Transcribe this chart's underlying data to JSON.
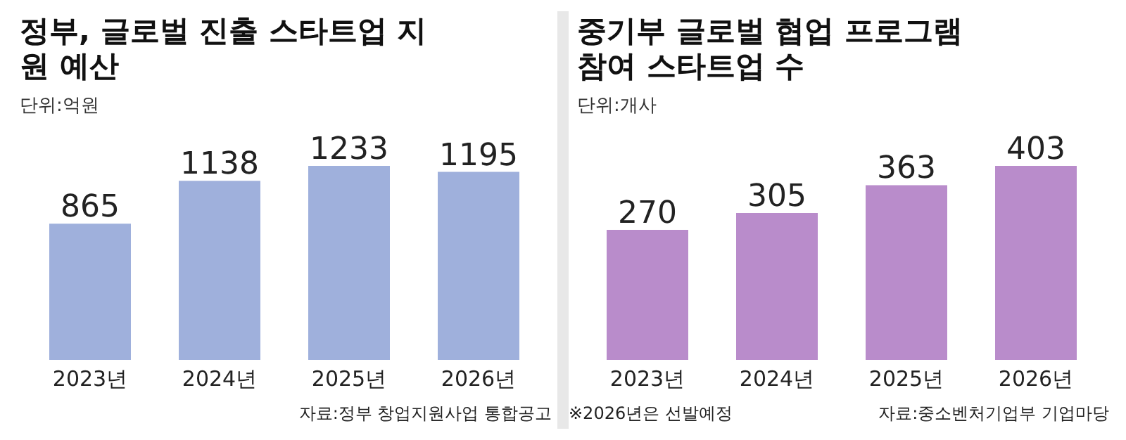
{
  "chart_data": [
    {
      "type": "bar",
      "title": "정부, 글로벌 진출 스타트업 지원 예산",
      "subtitle": "단위:억원",
      "categories": [
        "2023년",
        "2024년",
        "2025년",
        "2026년"
      ],
      "values": [
        865,
        1138,
        1233,
        1195
      ],
      "color": "#9fb0dc",
      "data_labels": true,
      "annotations": [
        "자료:정부 창업지원사업 통합공고"
      ]
    },
    {
      "type": "bar",
      "title": "중기부 글로벌 협업 프로그램 참여 스타트업 수",
      "subtitle": "단위:개사",
      "categories": [
        "2023년",
        "2024년",
        "2025년",
        "2026년"
      ],
      "values": [
        270,
        305,
        363,
        403
      ],
      "color": "#b98ccb",
      "data_labels": true,
      "annotations": [
        "※2026년은 선발예정",
        "자료:중소벤처기업부 기업마당"
      ]
    }
  ]
}
